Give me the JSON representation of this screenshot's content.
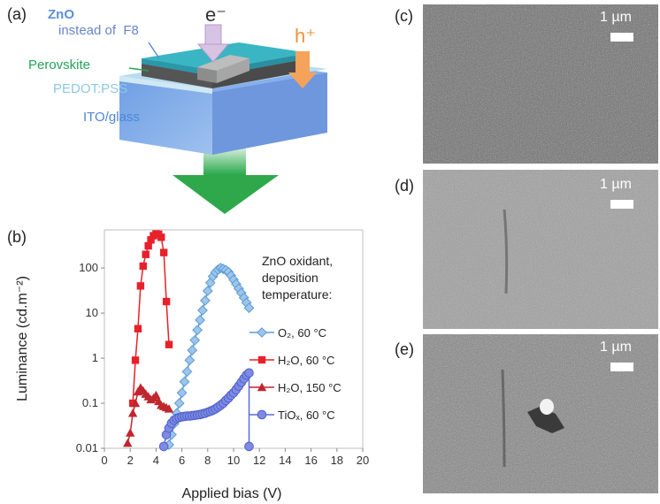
{
  "panels": {
    "a": {
      "label": "(a)",
      "electron": "e⁻",
      "hole": "h⁺",
      "zno": "ZnO",
      "instead": "instead of  F8",
      "perovskite": "Perovskite",
      "pedot": "PEDOT:PSS",
      "ito": "ITO/glass",
      "colors": {
        "zno": "#5a8fd6",
        "perovskite": "#22a455",
        "pedot": "#a9d3ea",
        "ito": "#4f86d9",
        "arrow_e": "#c9a5d8",
        "arrow_h": "#f0923a",
        "emission": "#38b04a"
      }
    },
    "b": {
      "label": "(b)"
    },
    "c": {
      "label": "(c)",
      "scale": "1 µm"
    },
    "d": {
      "label": "(d)",
      "scale": "1 µm"
    },
    "e": {
      "label": "(e)",
      "scale": "1 µm"
    }
  },
  "chart_data": {
    "type": "scatter",
    "xlabel": "Applied bias (V)",
    "ylabel": "Luminance (cd.m⁻²)",
    "xlim": [
      0,
      20
    ],
    "ylim": [
      0.01,
      700
    ],
    "yscale": "log",
    "x_ticks": [
      "0",
      "2",
      "4",
      "6",
      "8",
      "10",
      "12",
      "14",
      "16",
      "18",
      "20"
    ],
    "y_ticks": [
      "0.01",
      "0.1",
      "1",
      "10",
      "100"
    ],
    "legend_title": [
      "ZnO oxidant,",
      "deposition",
      "temperature:"
    ],
    "legend_position": "right",
    "series": [
      {
        "name": "O₂, 60 °C",
        "color": "#5b9bd5",
        "marker": "diamond",
        "x": [
          5.0,
          5.2,
          5.4,
          5.6,
          5.8,
          6.0,
          6.2,
          6.4,
          6.6,
          6.8,
          7.0,
          7.2,
          7.4,
          7.6,
          7.8,
          8.0,
          8.2,
          8.4,
          8.6,
          8.8,
          9.0,
          9.2,
          9.4,
          9.6,
          9.8,
          10.0,
          10.2,
          10.4,
          10.6,
          10.8,
          11.0,
          11.2
        ],
        "y": [
          0.012,
          0.02,
          0.035,
          0.06,
          0.1,
          0.17,
          0.3,
          0.5,
          0.9,
          1.5,
          2.5,
          4.2,
          7,
          11.5,
          19,
          31,
          47,
          65,
          80,
          92,
          100,
          95,
          90,
          82,
          68,
          55,
          44,
          35,
          28,
          22,
          17,
          13
        ]
      },
      {
        "name": "H₂O, 60 °C",
        "color": "#e8202a",
        "marker": "square",
        "x": [
          2.2,
          2.4,
          2.6,
          2.8,
          3.0,
          3.2,
          3.4,
          3.6,
          3.8,
          4.0,
          4.2,
          4.4,
          4.6,
          4.8,
          5.0
        ],
        "y": [
          0.1,
          0.9,
          4.5,
          40,
          110,
          200,
          310,
          420,
          520,
          570,
          560,
          480,
          220,
          18,
          2
        ]
      },
      {
        "name": "H₂O, 150 °C",
        "color": "#c0262e",
        "marker": "triangle",
        "x": [
          1.8,
          2.0,
          2.2,
          2.4,
          2.6,
          2.8,
          3.0,
          3.2,
          3.4,
          3.6,
          3.8,
          4.0,
          4.2,
          4.4,
          4.6,
          4.8,
          5.0
        ],
        "y": [
          0.013,
          0.022,
          0.06,
          0.1,
          0.18,
          0.22,
          0.19,
          0.16,
          0.14,
          0.12,
          0.13,
          0.15,
          0.11,
          0.09,
          0.085,
          0.08,
          0.075
        ]
      },
      {
        "name": "TiOₓ, 60 °C",
        "color": "#5b6cd6",
        "marker": "circle",
        "x": [
          4.6,
          4.8,
          5.0,
          5.2,
          5.4,
          5.6,
          5.8,
          6.0,
          6.2,
          6.4,
          6.6,
          6.8,
          7.0,
          7.2,
          7.4,
          7.6,
          7.8,
          8.0,
          8.2,
          8.4,
          8.6,
          8.8,
          9.0,
          9.2,
          9.4,
          9.6,
          9.8,
          10.0,
          10.2,
          10.4,
          10.6,
          10.8,
          11.0,
          11.2,
          11.2
        ],
        "y": [
          0.011,
          0.02,
          0.028,
          0.036,
          0.042,
          0.046,
          0.048,
          0.05,
          0.051,
          0.052,
          0.052,
          0.053,
          0.054,
          0.055,
          0.056,
          0.058,
          0.06,
          0.063,
          0.066,
          0.07,
          0.075,
          0.082,
          0.09,
          0.1,
          0.115,
          0.13,
          0.15,
          0.17,
          0.2,
          0.24,
          0.29,
          0.35,
          0.42,
          0.47,
          0.011
        ]
      }
    ]
  }
}
